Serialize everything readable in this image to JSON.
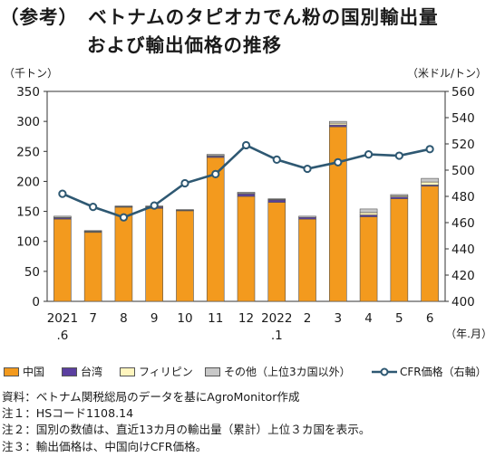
{
  "title_line1": "（参考）　ベトナムのタピオカでん粉の国別輸出量",
  "title_line2": "および輸出価格の推移",
  "left_unit": "（千トン）",
  "right_unit": "（米ドル/トン）",
  "x_unit": "（年.月）",
  "colors": {
    "china": "#F39A1E",
    "taiwan": "#5B3FA0",
    "philippines": "#FFF5BE",
    "other": "#C8C8C8",
    "line": "#2E5872"
  },
  "legend": {
    "china": "中国",
    "taiwan": "台湾",
    "philippines": "フィリピン",
    "other": "その他（上位3カ国以外）",
    "cfr": "CFR価格（右軸）"
  },
  "notes": [
    "資料：ベトナム関税総局のデータを基にAgroMonitor作成",
    "注１：HSコード1108.14",
    "注２：国別の数値は、直近13カ月の輸出量（累計）上位３カ国を表示。",
    "注３：輸出価格は、中国向けCFR価格。"
  ],
  "chart_data": {
    "type": "bar",
    "stacked": true,
    "categories": [
      "2021\n.6",
      "7",
      "8",
      "9",
      "10",
      "11",
      "12",
      "2022\n.1",
      "2",
      "3",
      "4",
      "5",
      "6"
    ],
    "series": [
      {
        "name": "中国",
        "values": [
          137,
          115,
          157,
          155,
          151,
          240,
          175,
          165,
          137,
          291,
          141,
          171,
          192
        ]
      },
      {
        "name": "台湾",
        "values": [
          2,
          1,
          1,
          2,
          1,
          2,
          4,
          4,
          3,
          3,
          3,
          3,
          2
        ]
      },
      {
        "name": "フィリピン",
        "values": [
          1,
          1,
          0,
          1,
          0,
          1,
          1,
          1,
          0,
          3,
          4,
          2,
          5
        ]
      },
      {
        "name": "その他（上位3カ国以外）",
        "values": [
          2,
          1,
          1,
          1,
          1,
          2,
          2,
          1,
          2,
          3,
          6,
          2,
          6
        ]
      }
    ],
    "line_series": {
      "name": "CFR価格（右軸）",
      "axis": "right",
      "values": [
        482,
        472,
        464,
        473,
        490,
        497,
        519,
        508,
        501,
        506,
        512,
        511,
        516
      ]
    },
    "ylim_left": [
      0,
      350
    ],
    "yticks_left": [
      0,
      50,
      100,
      150,
      200,
      250,
      300,
      350
    ],
    "ylim_right": [
      400,
      560
    ],
    "yticks_right": [
      400,
      420,
      440,
      460,
      480,
      500,
      520,
      540,
      560
    ],
    "xlabel": "（年.月）",
    "ylabel_left": "（千トン）",
    "ylabel_right": "（米ドル/トン）",
    "grid": false,
    "legend_position": "bottom"
  }
}
